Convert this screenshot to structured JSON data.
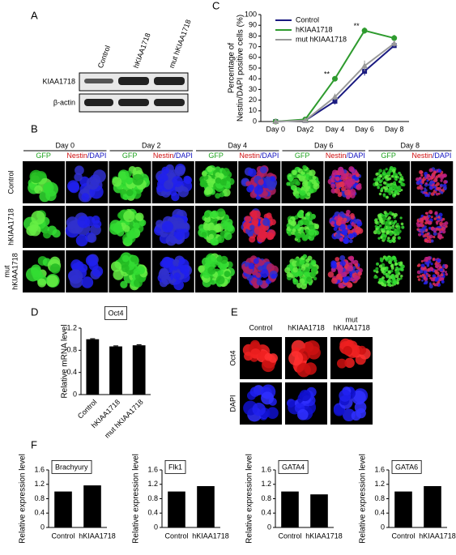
{
  "panel_labels": [
    "A",
    "B",
    "C",
    "D",
    "E",
    "F"
  ],
  "panel_a": {
    "lanes": [
      "Control",
      "hKIAA1718",
      "mut hKIAA1718"
    ],
    "rows": [
      "KIAA1718",
      "β-actin"
    ]
  },
  "panel_b": {
    "days": [
      "Day 0",
      "Day 2",
      "Day 4",
      "Day 6",
      "Day 8"
    ],
    "gfp": "GFP",
    "nestin": "Nestin",
    "dapi": "/DAPI",
    "rows": [
      [
        "Control"
      ],
      [
        "hKIAA1718"
      ],
      [
        "mut",
        "hKIAA1718"
      ]
    ]
  },
  "panel_e": {
    "columns": [
      [
        "Control"
      ],
      [
        "hKIAA1718"
      ],
      [
        "mut",
        "hKIAA1718"
      ]
    ],
    "rows": [
      "Oct4",
      "DAPI"
    ]
  },
  "chart_data": [
    {
      "type": "line",
      "ylabel": [
        "Percentage of",
        "Nestin/DAPI positive cells (%)"
      ],
      "categories": [
        "Day 0",
        "Day2",
        "Day 4",
        "Day 6",
        "Day 8"
      ],
      "ylim": [
        0,
        100
      ],
      "yticks": [
        0,
        10,
        20,
        30,
        40,
        50,
        60,
        70,
        80,
        90,
        100
      ],
      "annotations": [
        {
          "text": "**",
          "category": 2,
          "y": 44
        },
        {
          "text": "**",
          "category": 3,
          "y": 89
        }
      ],
      "series": [
        {
          "name": "Control",
          "color": "#1a1a80",
          "marker": "square",
          "values": [
            0,
            1,
            19,
            47,
            71
          ],
          "errors": [
            0.5,
            0.5,
            3,
            4,
            2
          ]
        },
        {
          "name": "hKIAA1718",
          "color": "#2e9b2e",
          "marker": "circle",
          "values": [
            0,
            2,
            40,
            85,
            78
          ],
          "errors": [
            0.5,
            0.5,
            2,
            3,
            3
          ]
        },
        {
          "name": "mut hKIAA1718",
          "color": "#999999",
          "marker": "triangle",
          "values": [
            0,
            1,
            23,
            52,
            73
          ],
          "errors": [
            0.5,
            0.5,
            3,
            5,
            3
          ]
        }
      ]
    },
    {
      "type": "bar",
      "title": "Oct4",
      "ylabel": "Relative mRNA level",
      "categories": [
        "Control",
        "hKIAA1718",
        "mut hKIAA1718"
      ],
      "values": [
        1.0,
        0.87,
        0.89
      ],
      "errors": [
        0.01,
        0.01,
        0.01
      ],
      "color": "#000000",
      "ylim": [
        0,
        1.2
      ],
      "yticks": [
        0,
        0.4,
        0.8,
        1.2
      ]
    },
    {
      "type": "bar",
      "title": "Brachyury",
      "ylabel": "Relative expression level",
      "categories": [
        "Control",
        "hKIAA1718"
      ],
      "values": [
        1.0,
        1.17
      ],
      "color": "#000000",
      "ylim": [
        0,
        1.6
      ],
      "yticks": [
        0,
        0.4,
        0.8,
        1.2,
        1.6
      ]
    },
    {
      "type": "bar",
      "title": "Flk1",
      "ylabel": "Relative expression level",
      "categories": [
        "Control",
        "hKIAA1718"
      ],
      "values": [
        1.0,
        1.15
      ],
      "color": "#000000",
      "ylim": [
        0,
        1.6
      ],
      "yticks": [
        0,
        0.4,
        0.8,
        1.2,
        1.6
      ]
    },
    {
      "type": "bar",
      "title": "GATA4",
      "ylabel": "Relative expression level",
      "categories": [
        "Control",
        "hKIAA1718"
      ],
      "values": [
        1.0,
        0.92
      ],
      "color": "#000000",
      "ylim": [
        0,
        1.6
      ],
      "yticks": [
        0,
        0.4,
        0.8,
        1.2,
        1.6
      ]
    },
    {
      "type": "bar",
      "title": "GATA6",
      "ylabel": "Relative expression level",
      "categories": [
        "Control",
        "hKIAA1718"
      ],
      "values": [
        1.0,
        1.15
      ],
      "color": "#000000",
      "ylim": [
        0,
        1.6
      ],
      "yticks": [
        0,
        0.4,
        0.8,
        1.2,
        1.6
      ]
    }
  ]
}
